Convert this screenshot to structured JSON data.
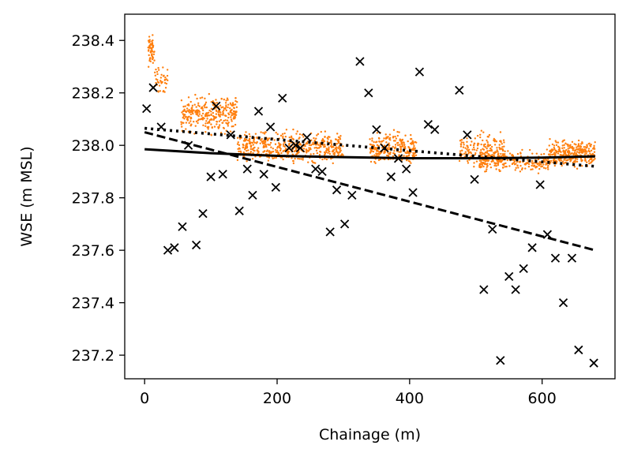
{
  "chart_data": {
    "type": "scatter",
    "xlabel": "Chainage (m)",
    "ylabel": "WSE (m MSL)",
    "xlim": [
      -30,
      710
    ],
    "ylim": [
      237.11,
      238.5
    ],
    "x_ticks": [
      0,
      200,
      400,
      600
    ],
    "y_ticks": [
      237.2,
      237.4,
      237.6,
      237.8,
      238.0,
      238.2,
      238.4
    ],
    "grid": false,
    "legend": "none",
    "series": [
      {
        "marker": "dot",
        "color": "#ff7f0e",
        "segments": [
          {
            "x": [
              5,
              15
            ],
            "mean": 238.36,
            "spread": 0.06,
            "n": 60
          },
          {
            "x": [
              15,
              35
            ],
            "mean": 238.25,
            "spread": 0.05,
            "n": 40
          },
          {
            "x": [
              55,
              140
            ],
            "mean": 238.12,
            "spread": 0.07,
            "n": 300
          },
          {
            "x": [
              140,
              300
            ],
            "mean": 237.99,
            "spread": 0.06,
            "n": 500
          },
          {
            "x": [
              340,
              410
            ],
            "mean": 237.99,
            "spread": 0.06,
            "n": 250
          },
          {
            "x": [
              475,
              545
            ],
            "mean": 237.98,
            "spread": 0.07,
            "n": 180
          },
          {
            "x": [
              505,
              610
            ],
            "mean": 237.94,
            "spread": 0.04,
            "n": 250
          },
          {
            "x": [
              610,
              680
            ],
            "mean": 237.97,
            "spread": 0.05,
            "n": 300
          }
        ]
      },
      {
        "marker": "x",
        "color": "#000000",
        "points": [
          [
            3,
            238.14
          ],
          [
            13,
            238.22
          ],
          [
            25,
            238.07
          ],
          [
            35,
            237.6
          ],
          [
            45,
            237.61
          ],
          [
            57,
            237.69
          ],
          [
            66,
            238.0
          ],
          [
            78,
            237.62
          ],
          [
            88,
            237.74
          ],
          [
            100,
            237.88
          ],
          [
            108,
            238.15
          ],
          [
            118,
            237.89
          ],
          [
            130,
            238.04
          ],
          [
            143,
            237.75
          ],
          [
            155,
            237.91
          ],
          [
            163,
            237.81
          ],
          [
            172,
            238.13
          ],
          [
            180,
            237.89
          ],
          [
            190,
            238.07
          ],
          [
            198,
            237.84
          ],
          [
            208,
            238.18
          ],
          [
            218,
            237.99
          ],
          [
            228,
            238.0
          ],
          [
            235,
            237.99
          ],
          [
            245,
            238.03
          ],
          [
            258,
            237.91
          ],
          [
            268,
            237.9
          ],
          [
            280,
            237.67
          ],
          [
            290,
            237.83
          ],
          [
            302,
            237.7
          ],
          [
            313,
            237.81
          ],
          [
            325,
            238.32
          ],
          [
            338,
            238.2
          ],
          [
            350,
            238.06
          ],
          [
            362,
            237.99
          ],
          [
            372,
            237.88
          ],
          [
            383,
            237.95
          ],
          [
            395,
            237.91
          ],
          [
            405,
            237.82
          ],
          [
            415,
            238.28
          ],
          [
            428,
            238.08
          ],
          [
            438,
            238.06
          ],
          [
            475,
            238.21
          ],
          [
            487,
            238.04
          ],
          [
            498,
            237.87
          ],
          [
            512,
            237.45
          ],
          [
            525,
            237.68
          ],
          [
            537,
            237.18
          ],
          [
            550,
            237.5
          ],
          [
            560,
            237.45
          ],
          [
            572,
            237.53
          ],
          [
            585,
            237.61
          ],
          [
            597,
            237.85
          ],
          [
            608,
            237.66
          ],
          [
            620,
            237.57
          ],
          [
            632,
            237.4
          ],
          [
            645,
            237.57
          ],
          [
            655,
            237.22
          ],
          [
            678,
            237.17
          ]
        ]
      },
      {
        "marker": "none",
        "line": "solid",
        "color": "#000000",
        "x": [
          0,
          100,
          200,
          300,
          400,
          500,
          600,
          680
        ],
        "y": [
          237.985,
          237.97,
          237.96,
          237.955,
          237.951,
          237.951,
          237.953,
          237.958
        ]
      },
      {
        "marker": "none",
        "line": "dashed",
        "color": "#000000",
        "x": [
          0,
          680
        ],
        "y": [
          238.05,
          237.6
        ]
      },
      {
        "marker": "none",
        "line": "dotted",
        "color": "#000000",
        "x": [
          0,
          680
        ],
        "y": [
          238.065,
          237.92
        ]
      }
    ]
  }
}
